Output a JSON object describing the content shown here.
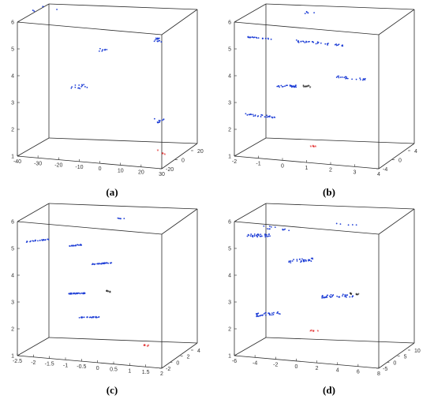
{
  "chart_data": [
    {
      "type": "scatter",
      "caption": "(a)",
      "axes": {
        "x_ticks": [
          "-40",
          "-30",
          "-20",
          "-10",
          "0",
          "10",
          "20",
          "30"
        ],
        "y_ticks": [
          "-20",
          "0",
          "20"
        ],
        "z_ticks": [
          "1",
          "2",
          "3",
          "4",
          "5",
          "6"
        ],
        "zlim": [
          1,
          6
        ]
      },
      "series": [
        {
          "color": "#1f3fd6",
          "marker": "dot",
          "clusters": [
            {
              "center": [
                -38,
                10,
                6.0
              ],
              "n": 5,
              "dir": [
                1.5,
                0,
                0.02
              ],
              "spread": 0.05
            },
            {
              "center": [
                -18,
                0,
                3.4
              ],
              "n": 14,
              "dir": [
                1.2,
                0,
                0.01
              ],
              "spread": 0.04
            },
            {
              "center": [
                -6,
                0,
                4.85
              ],
              "n": 10,
              "dir": [
                0.5,
                0,
                0
              ],
              "spread": 0.03
            },
            {
              "center": [
                19,
                5,
                5.3
              ],
              "n": 14,
              "dir": [
                0.6,
                0,
                0
              ],
              "spread": 0.04
            },
            {
              "center": [
                19,
                5,
                2.3
              ],
              "n": 12,
              "dir": [
                0.6,
                0,
                0
              ],
              "spread": 0.04
            }
          ]
        },
        {
          "color": "#e02020",
          "marker": "star",
          "clusters": [
            {
              "center": [
                20,
                5,
                1.1
              ],
              "n": 4,
              "dir": [
                0.6,
                0,
                0
              ],
              "spread": 0.04
            }
          ]
        }
      ]
    },
    {
      "type": "scatter",
      "caption": "(b)",
      "axes": {
        "x_ticks": [
          "-2",
          "-1",
          "0",
          "1",
          "2",
          "3",
          "4"
        ],
        "y_ticks": [
          "-4",
          "0",
          "4"
        ],
        "z_ticks": [
          "1",
          "2",
          "3",
          "4",
          "5",
          "6"
        ],
        "zlim": [
          1,
          6
        ]
      },
      "series": [
        {
          "color": "#1f3fd6",
          "marker": "dot",
          "clusters": [
            {
              "center": [
                -1.6,
                0,
                5.1
              ],
              "n": 22,
              "dir": [
                0.12,
                0,
                0
              ],
              "spread": 0.01
            },
            {
              "center": [
                0.4,
                0,
                5.1
              ],
              "n": 22,
              "dir": [
                0.15,
                0,
                0
              ],
              "spread": 0.02
            },
            {
              "center": [
                1.5,
                0,
                5.1
              ],
              "n": 12,
              "dir": [
                0.1,
                0,
                0
              ],
              "spread": 0.02
            },
            {
              "center": [
                -0.4,
                0,
                3.4
              ],
              "n": 26,
              "dir": [
                0.12,
                0,
                0.01
              ],
              "spread": 0.02
            },
            {
              "center": [
                2.2,
                0,
                3.9
              ],
              "n": 22,
              "dir": [
                0.15,
                0,
                0
              ],
              "spread": 0.02
            },
            {
              "center": [
                -1.6,
                0,
                2.2
              ],
              "n": 28,
              "dir": [
                0.15,
                0,
                0
              ],
              "spread": 0.02
            },
            {
              "center": [
                0.5,
                0,
                6.2
              ],
              "n": 6,
              "dir": [
                0.05,
                0,
                0
              ],
              "spread": 0.02
            }
          ]
        },
        {
          "color": "#111111",
          "marker": "star",
          "clusters": [
            {
              "center": [
                0.4,
                0,
                3.42
              ],
              "n": 8,
              "dir": [
                0.05,
                0,
                0
              ],
              "spread": 0.01
            }
          ]
        },
        {
          "color": "#e02020",
          "marker": "star",
          "clusters": [
            {
              "center": [
                0.6,
                0,
                1.2
              ],
              "n": 5,
              "dir": [
                0.06,
                0,
                0
              ],
              "spread": 0.01
            }
          ]
        }
      ]
    },
    {
      "type": "scatter",
      "caption": "(c)",
      "axes": {
        "x_ticks": [
          "-2.5",
          "-2",
          "-1.5",
          "-1",
          "-0.5",
          "0",
          "0.5",
          "1",
          "1.5",
          "2"
        ],
        "y_ticks": [
          "-2",
          "0",
          "2",
          "4"
        ],
        "z_ticks": [
          "1",
          "2",
          "3",
          "4",
          "5",
          "6"
        ],
        "zlim": [
          1,
          6
        ]
      },
      "series": [
        {
          "color": "#1f3fd6",
          "marker": "dot",
          "clusters": [
            {
              "center": [
                -2.2,
                0,
                5.1
              ],
              "n": 24,
              "dir": [
                0.09,
                0,
                0.02
              ],
              "spread": 0.01
            },
            {
              "center": [
                -1.0,
                0,
                5.05
              ],
              "n": 20,
              "dir": [
                0.05,
                0,
                0.01
              ],
              "spread": 0.01
            },
            {
              "center": [
                -0.2,
                0,
                4.45
              ],
              "n": 28,
              "dir": [
                0.08,
                0,
                0.015
              ],
              "spread": 0.01
            },
            {
              "center": [
                -1.0,
                0,
                3.25
              ],
              "n": 32,
              "dir": [
                0.07,
                0,
                0.01
              ],
              "spread": 0.01
            },
            {
              "center": [
                -0.6,
                0,
                2.4
              ],
              "n": 26,
              "dir": [
                0.08,
                0,
                0.01
              ],
              "spread": 0.01
            },
            {
              "center": [
                0.5,
                0,
                6.2
              ],
              "n": 6,
              "dir": [
                0.05,
                0,
                0
              ],
              "spread": 0.01
            }
          ]
        },
        {
          "color": "#111111",
          "marker": "star",
          "clusters": [
            {
              "center": [
                0.0,
                0,
                3.4
              ],
              "n": 6,
              "dir": [
                0.02,
                0,
                0
              ],
              "spread": 0.01
            }
          ]
        },
        {
          "color": "#e02020",
          "marker": "star",
          "clusters": [
            {
              "center": [
                1.3,
                0,
                1.5
              ],
              "n": 5,
              "dir": [
                0.05,
                0,
                0
              ],
              "spread": 0.01
            }
          ]
        }
      ]
    },
    {
      "type": "scatter",
      "caption": "(d)",
      "axes": {
        "x_ticks": [
          "-6",
          "-4",
          "-2",
          "0",
          "2",
          "4",
          "6",
          "8"
        ],
        "y_ticks": [
          "-5",
          "0",
          "5",
          "10"
        ],
        "z_ticks": [
          "1",
          "2",
          "3",
          "4",
          "5",
          "6"
        ],
        "zlim": [
          1,
          6
        ]
      },
      "series": [
        {
          "color": "#1f3fd6",
          "marker": "dot",
          "clusters": [
            {
              "center": [
                -4.6,
                0,
                5.3
              ],
              "n": 34,
              "dir": [
                0.3,
                0,
                0.01
              ],
              "spread": 0.03
            },
            {
              "center": [
                -3.0,
                0,
                5.6
              ],
              "n": 12,
              "dir": [
                0.3,
                0,
                0
              ],
              "spread": 0.04
            },
            {
              "center": [
                -0.6,
                0,
                4.5
              ],
              "n": 30,
              "dir": [
                0.3,
                0,
                0.02
              ],
              "spread": 0.03
            },
            {
              "center": [
                3.0,
                0,
                3.3
              ],
              "n": 36,
              "dir": [
                0.4,
                0,
                0.02
              ],
              "spread": 0.03
            },
            {
              "center": [
                -3.8,
                0,
                2.4
              ],
              "n": 34,
              "dir": [
                0.3,
                0,
                0.02
              ],
              "spread": 0.03
            },
            {
              "center": [
                3.8,
                0,
                6.0
              ],
              "n": 5,
              "dir": [
                0.3,
                0,
                0
              ],
              "spread": 0.01
            }
          ]
        },
        {
          "color": "#111111",
          "marker": "star",
          "clusters": [
            {
              "center": [
                4.6,
                0,
                3.4
              ],
              "n": 8,
              "dir": [
                0.1,
                0,
                0
              ],
              "spread": 0.01
            }
          ]
        },
        {
          "color": "#e02020",
          "marker": "star",
          "clusters": [
            {
              "center": [
                0.6,
                0,
                1.9
              ],
              "n": 5,
              "dir": [
                0.15,
                0,
                0
              ],
              "spread": 0.01
            }
          ]
        }
      ]
    }
  ]
}
